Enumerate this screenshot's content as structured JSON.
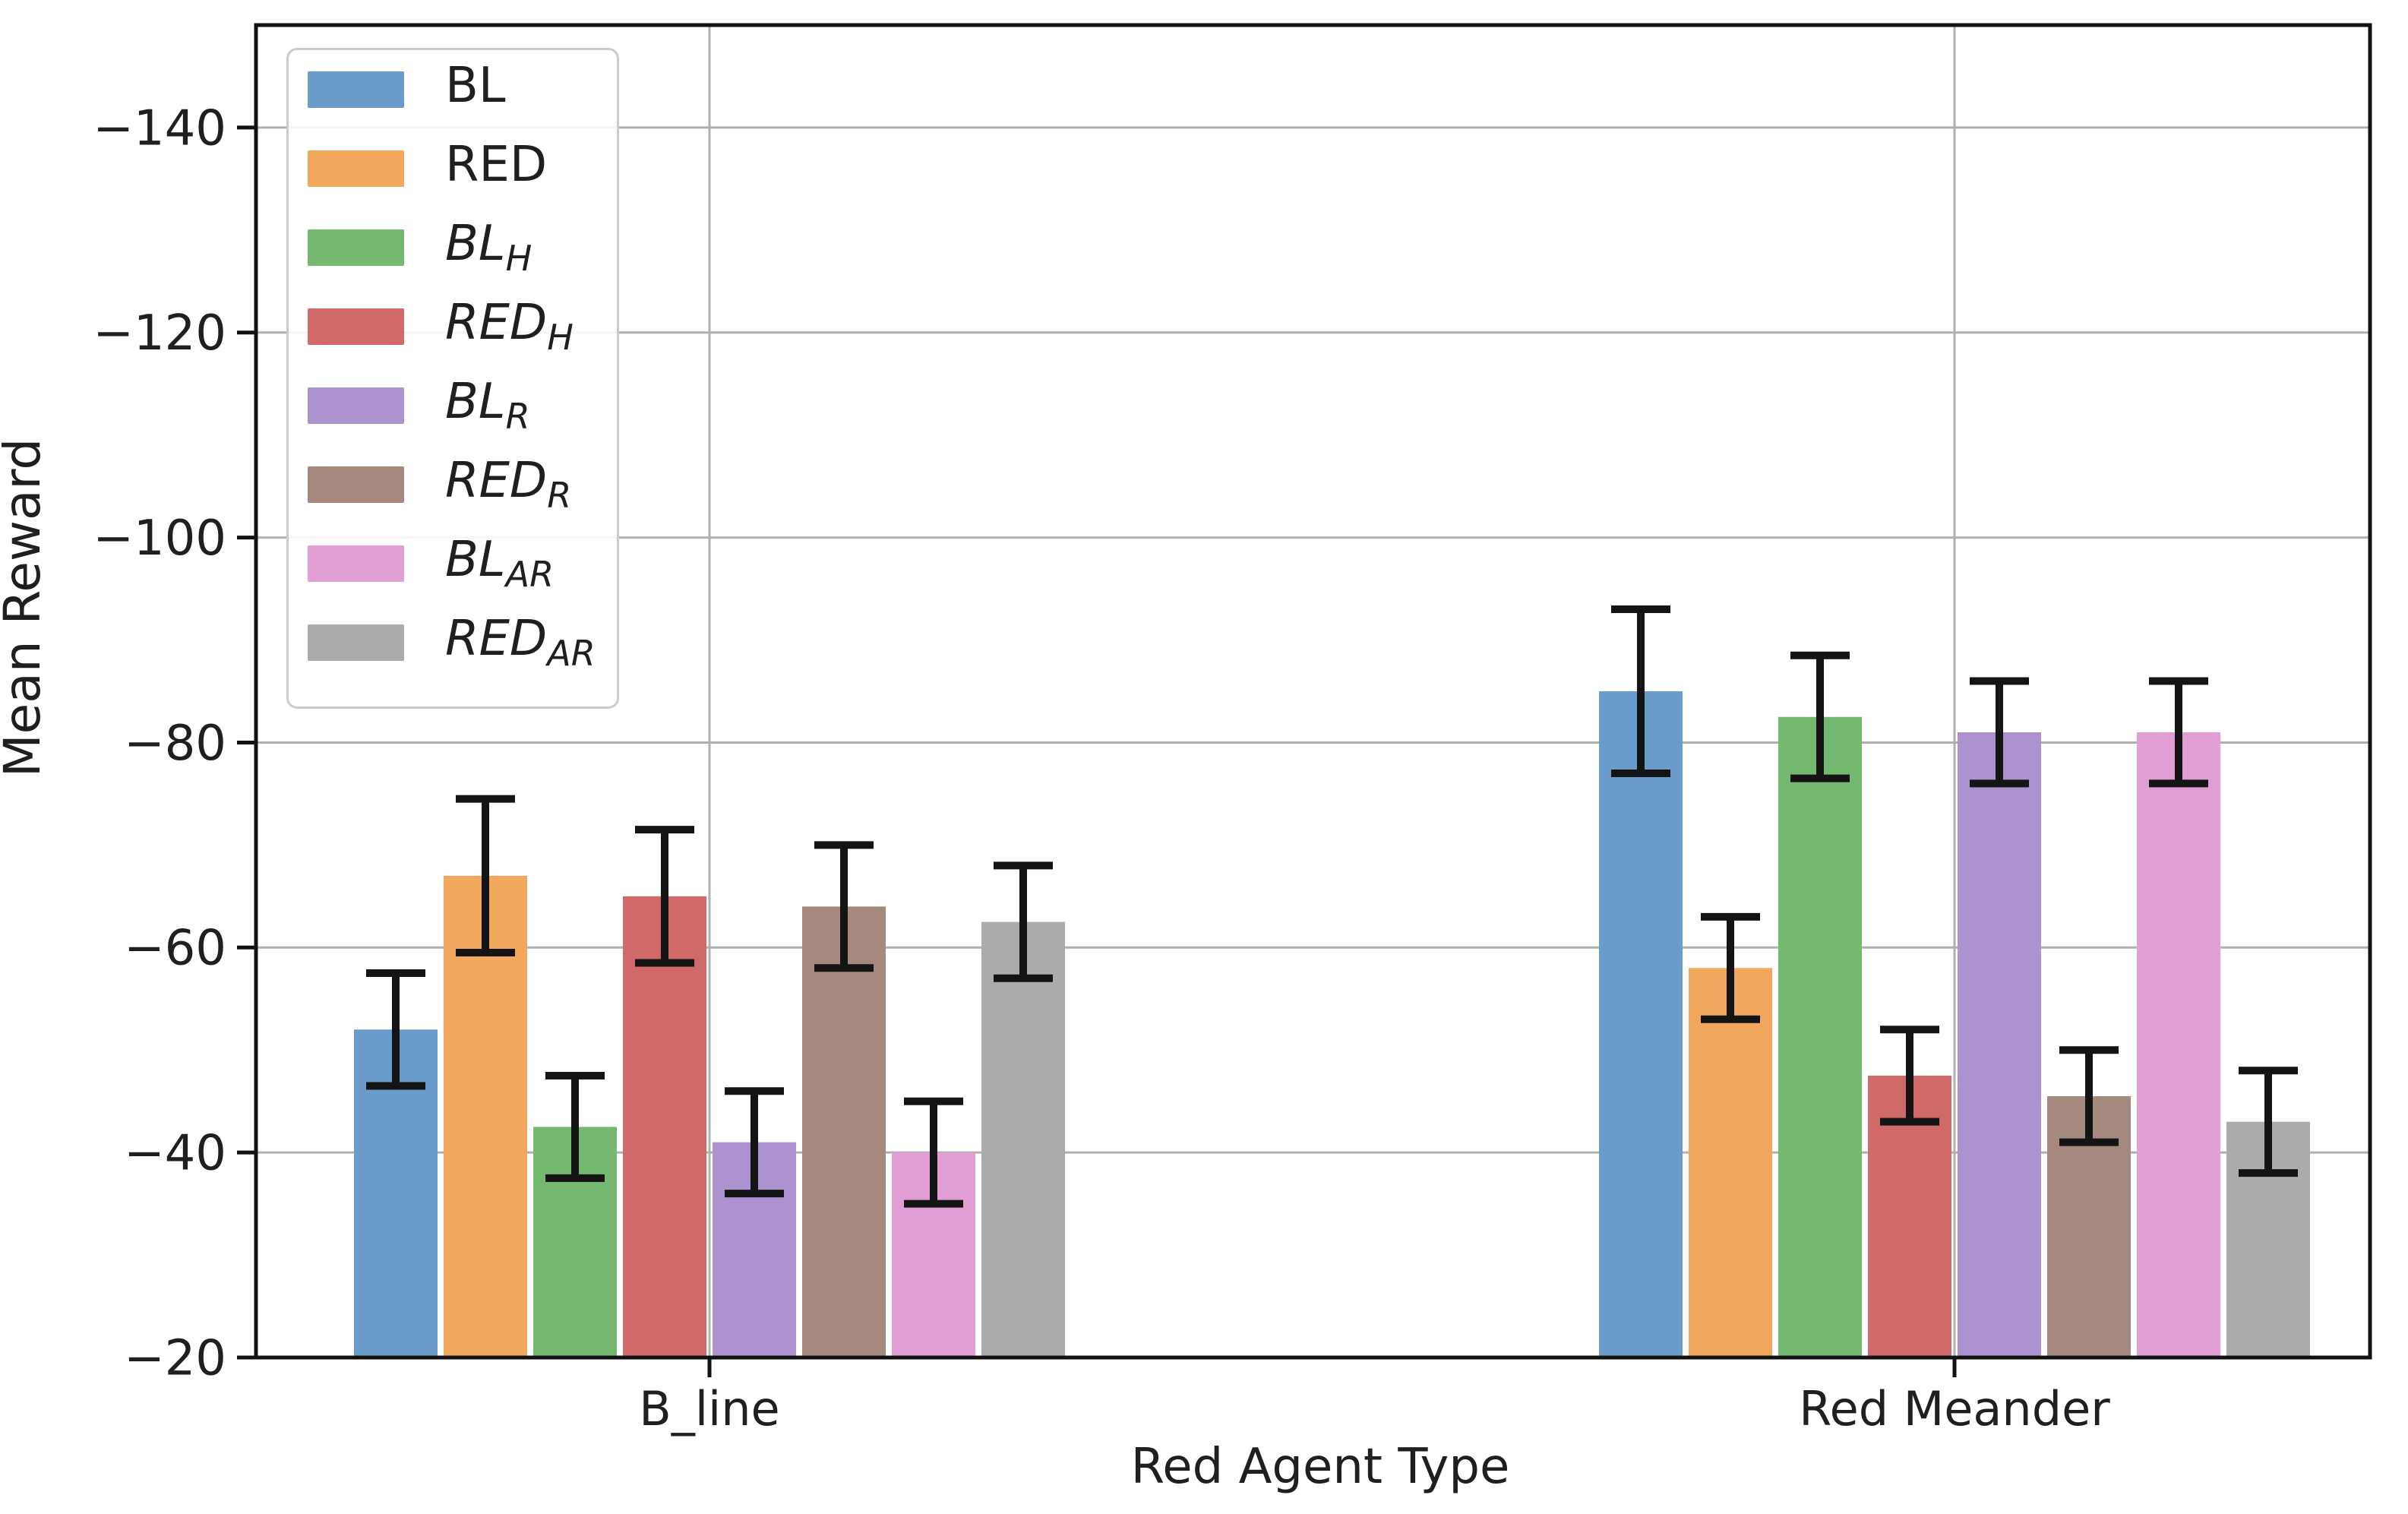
{
  "chart_data": {
    "type": "bar",
    "title": "",
    "xlabel": "Red Agent Type",
    "ylabel": "Mean Reward",
    "categories": [
      "B_line",
      "Red Meander"
    ],
    "y_axis_inverted": true,
    "ylim": [
      -20,
      -150
    ],
    "yticks": [
      -140,
      -120,
      -100,
      -80,
      -60,
      -40,
      -20
    ],
    "ytick_labels": [
      "−140",
      "−120",
      "−100",
      "−80",
      "−60",
      "−40",
      "−20"
    ],
    "grid": true,
    "legend_position": "upper left",
    "error_bar_color": "#141414",
    "grid_color": "#b0b0b0",
    "spine_color": "#111111",
    "series": [
      {
        "label": "BL",
        "label_base": "BL",
        "label_sub": "",
        "italic": false,
        "color": "#6A9CC9",
        "values": [
          -52,
          -85
        ],
        "errors": [
          5.5,
          8
        ]
      },
      {
        "label": "RED",
        "label_base": "RED",
        "label_sub": "",
        "italic": false,
        "color": "#F2A85C",
        "values": [
          -67,
          -58
        ],
        "errors": [
          7.5,
          5
        ]
      },
      {
        "label": "BL_H",
        "label_base": "BL",
        "label_sub": "H",
        "italic": true,
        "color": "#74B96F",
        "values": [
          -42.5,
          -82.5
        ],
        "errors": [
          5,
          6
        ]
      },
      {
        "label": "RED_H",
        "label_base": "RED",
        "label_sub": "H",
        "italic": true,
        "color": "#D06A68",
        "values": [
          -65,
          -47.5
        ],
        "errors": [
          6.5,
          4.5
        ]
      },
      {
        "label": "BL_R",
        "label_base": "BL",
        "label_sub": "R",
        "italic": true,
        "color": "#AC92CE",
        "values": [
          -41,
          -81
        ],
        "errors": [
          5,
          5
        ]
      },
      {
        "label": "RED_R",
        "label_base": "RED",
        "label_sub": "R",
        "italic": true,
        "color": "#A6897E",
        "values": [
          -64,
          -45.5
        ],
        "errors": [
          6,
          4.5
        ]
      },
      {
        "label": "BL_AR",
        "label_base": "BL",
        "label_sub": "AR",
        "italic": true,
        "color": "#E19FD5",
        "values": [
          -40,
          -81
        ],
        "errors": [
          5,
          5
        ]
      },
      {
        "label": "RED_AR",
        "label_base": "RED",
        "label_sub": "AR",
        "italic": true,
        "color": "#ABABAB",
        "values": [
          -62.5,
          -43
        ],
        "errors": [
          5.5,
          5
        ]
      }
    ]
  }
}
